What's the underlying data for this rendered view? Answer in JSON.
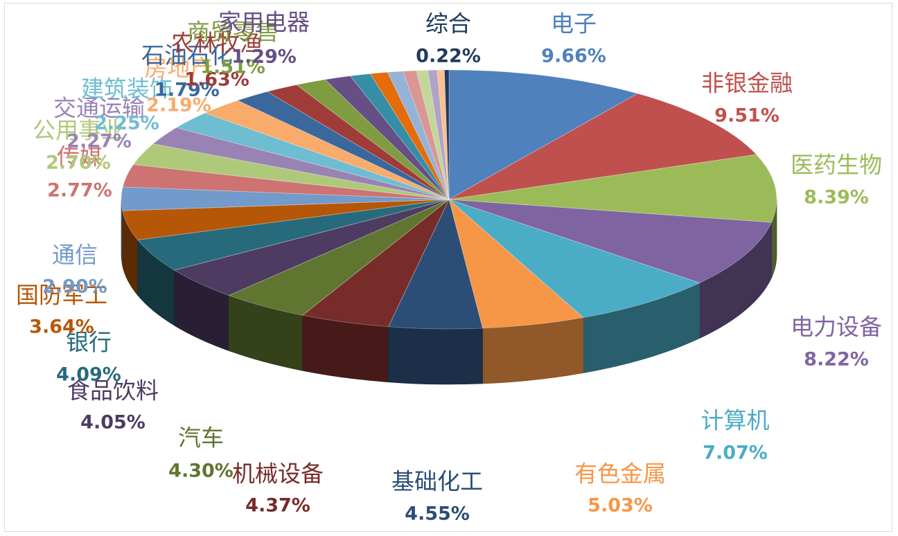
{
  "chart_data": {
    "type": "pie",
    "style": "3d-exploded-tilted",
    "title": "",
    "slices": [
      {
        "label": "电子",
        "value_label": "9.66%",
        "value": 9.66,
        "color": "#4F81BD"
      },
      {
        "label": "非银金融",
        "value_label": "9.51%",
        "value": 9.51,
        "color": "#C0504D"
      },
      {
        "label": "医药生物",
        "value_label": "8.39%",
        "value": 8.39,
        "color": "#9BBB59"
      },
      {
        "label": "电力设备",
        "value_label": "8.22%",
        "value": 8.22,
        "color": "#8064A2"
      },
      {
        "label": "计算机",
        "value_label": "7.07%",
        "value": 7.07,
        "color": "#4BACC6"
      },
      {
        "label": "有色金属",
        "value_label": "5.03%",
        "value": 5.03,
        "color": "#F79646"
      },
      {
        "label": "基础化工",
        "value_label": "4.55%",
        "value": 4.55,
        "color": "#2C4D75"
      },
      {
        "label": "机械设备",
        "value_label": "4.37%",
        "value": 4.37,
        "color": "#772C2A"
      },
      {
        "label": "汽车",
        "value_label": "4.30%",
        "value": 4.3,
        "color": "#5F7530"
      },
      {
        "label": "食品饮料",
        "value_label": "4.05%",
        "value": 4.05,
        "color": "#4D3B62"
      },
      {
        "label": "银行",
        "value_label": "4.09%",
        "value": 4.09,
        "color": "#276A7C"
      },
      {
        "label": "国防军工",
        "value_label": "3.64%",
        "value": 3.64,
        "color": "#B65708"
      },
      {
        "label": "通信",
        "value_label": "2.90%",
        "value": 2.9,
        "color": "#729ACA"
      },
      {
        "label": "传媒",
        "value_label": "2.77%",
        "value": 2.77,
        "color": "#CD7371"
      },
      {
        "label": "公用事业",
        "value_label": "2.70%",
        "value": 2.7,
        "color": "#AFC97A"
      },
      {
        "label": "交通运输",
        "value_label": "2.27%",
        "value": 2.27,
        "color": "#9983B5"
      },
      {
        "label": "建筑装饰",
        "value_label": "2.25%",
        "value": 2.25,
        "color": "#6FBDD1"
      },
      {
        "label": "房地产",
        "value_label": "2.19%",
        "value": 2.19,
        "color": "#F9AB6B"
      },
      {
        "label": "石油石化",
        "value_label": "1.79%",
        "value": 1.79,
        "color": "#3A679C"
      },
      {
        "label": "农林牧渔",
        "value_label": "1.63%",
        "value": 1.63,
        "color": "#9F3B38"
      },
      {
        "label": "商贸零售",
        "value_label": "1.51%",
        "value": 1.51,
        "color": "#7F9C40"
      },
      {
        "label": "家用电器",
        "value_label": "1.29%",
        "value": 1.29,
        "color": "#664F84"
      },
      {
        "label": "",
        "value_label": "",
        "value": 1.0,
        "color": "#358EA6"
      },
      {
        "label": "",
        "value_label": "",
        "value": 0.85,
        "color": "#E46C0A"
      },
      {
        "label": "",
        "value_label": "",
        "value": 0.75,
        "color": "#95B3D7"
      },
      {
        "label": "",
        "value_label": "",
        "value": 0.65,
        "color": "#D99694"
      },
      {
        "label": "",
        "value_label": "",
        "value": 0.55,
        "color": "#C3D69B"
      },
      {
        "label": "",
        "value_label": "",
        "value": 0.45,
        "color": "#B3A2C7"
      },
      {
        "label": "",
        "value_label": "",
        "value": 0.35,
        "color": "#FAC090"
      },
      {
        "label": "综合",
        "value_label": "0.22%",
        "value": 0.22,
        "color": "#1F3A5C"
      }
    ]
  }
}
